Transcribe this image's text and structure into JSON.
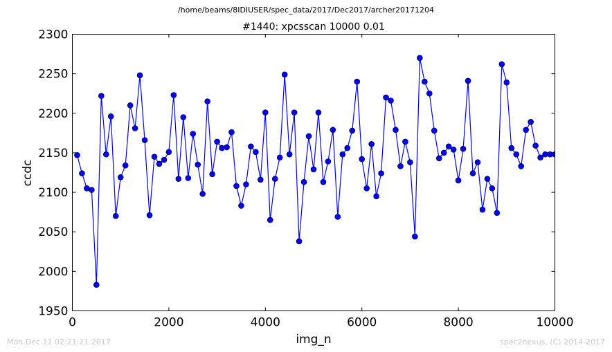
{
  "header": {
    "file_path": "/home/beams/8IDIUSER/spec_data/2017/Dec2017/archer20171204"
  },
  "footer": {
    "timestamp": "Mon Dec 11 02:21:21 2017",
    "credit": "spec2nexus, (C) 2014-2017"
  },
  "colors": {
    "series": "#0000ff",
    "text": "#000000",
    "footer_text": "#c8c8c8"
  },
  "chart_data": {
    "type": "line",
    "title": "#1440: xpcsscan 10000 0.01",
    "xlabel": "img_n",
    "ylabel": "ccdc",
    "xlim": [
      0,
      10000
    ],
    "ylim": [
      1950,
      2300
    ],
    "xticks": [
      0,
      2000,
      4000,
      6000,
      8000,
      10000
    ],
    "yticks": [
      1950,
      2000,
      2050,
      2100,
      2150,
      2200,
      2250,
      2300
    ],
    "grid": false,
    "legend": "none",
    "markers": "circle",
    "series": [
      {
        "x": [
          100,
          200,
          300,
          400,
          500,
          600,
          700,
          800,
          900,
          1000,
          1100,
          1200,
          1300,
          1400,
          1500,
          1600,
          1700,
          1800,
          1900,
          2000,
          2100,
          2200,
          2300,
          2400,
          2500,
          2600,
          2700,
          2800,
          2900,
          3000,
          3100,
          3200,
          3300,
          3400,
          3500,
          3600,
          3700,
          3800,
          3900,
          4000,
          4100,
          4200,
          4300,
          4400,
          4500,
          4600,
          4700,
          4800,
          4900,
          5000,
          5100,
          5200,
          5300,
          5400,
          5500,
          5600,
          5700,
          5800,
          5900,
          6000,
          6100,
          6200,
          6300,
          6400,
          6500,
          6600,
          6700,
          6800,
          6900,
          7000,
          7100,
          7200,
          7300,
          7400,
          7500,
          7600,
          7700,
          7800,
          7900,
          8000,
          8100,
          8200,
          8300,
          8400,
          8500,
          8600,
          8700,
          8800,
          8900,
          9000,
          9100,
          9200,
          9300,
          9400,
          9500,
          9600,
          9700,
          9800,
          9900,
          10000
        ],
        "values": [
          2147,
          2124,
          2105,
          2103,
          1983,
          2222,
          2148,
          2196,
          2070,
          2119,
          2134,
          2210,
          2181,
          2248,
          2166,
          2071,
          2145,
          2136,
          2141,
          2151,
          2223,
          2117,
          2195,
          2118,
          2174,
          2135,
          2098,
          2215,
          2123,
          2164,
          2156,
          2157,
          2176,
          2108,
          2083,
          2110,
          2158,
          2151,
          2116,
          2201,
          2065,
          2117,
          2144,
          2249,
          2148,
          2201,
          2038,
          2113,
          2171,
          2129,
          2201,
          2113,
          2139,
          2179,
          2069,
          2148,
          2156,
          2178,
          2240,
          2142,
          2105,
          2161,
          2095,
          2124,
          2220,
          2216,
          2179,
          2133,
          2164,
          2138,
          2044,
          2270,
          2240,
          2225,
          2178,
          2143,
          2150,
          2158,
          2154,
          2115,
          2155,
          2241,
          2124,
          2138,
          2078,
          2117,
          2105,
          2074,
          2262,
          2239,
          2156,
          2148,
          2133,
          2179,
          2189,
          2159,
          2144,
          2148,
          2148,
          2148
        ]
      }
    ]
  }
}
